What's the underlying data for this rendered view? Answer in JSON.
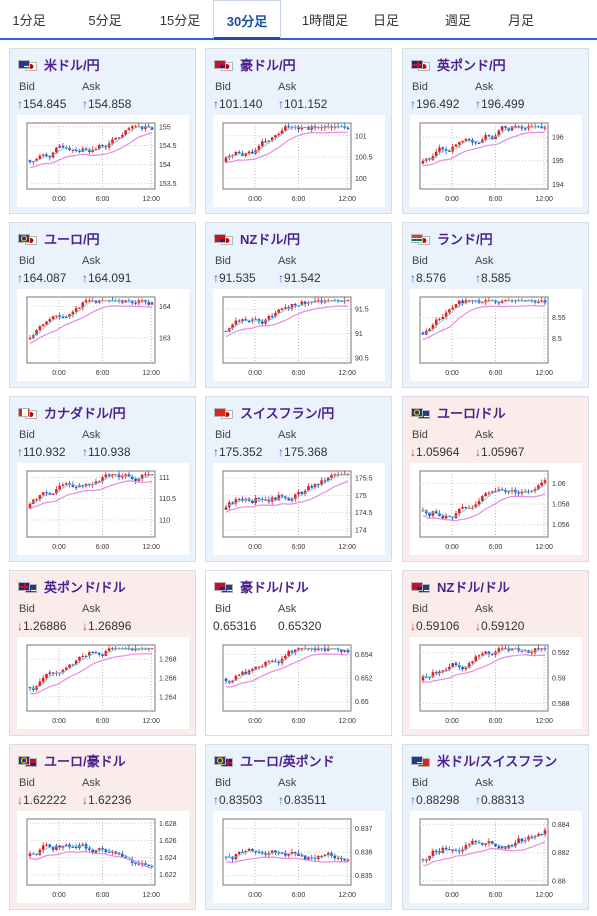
{
  "tabs": [
    {
      "label": "1分足",
      "active": false
    },
    {
      "label": "5分足",
      "active": false
    },
    {
      "label": "15分足",
      "active": false
    },
    {
      "label": "30分足",
      "active": true
    },
    {
      "label": "1時間足",
      "active": false
    },
    {
      "label": "日足",
      "active": false
    },
    {
      "label": "週足",
      "active": false
    },
    {
      "label": "月足",
      "active": false
    }
  ],
  "labels": {
    "bid": "Bid",
    "ask": "Ask"
  },
  "colors": {
    "up_arrow": "#1a6fc8",
    "down_arrow": "#d03030",
    "title": "#4a1f8e",
    "card_up_bg": "#eaf2fb",
    "card_down_bg": "#fbecec",
    "ma_line": "#e68ae6",
    "candle_up": "#e02020",
    "candle_down": "#2050c8"
  },
  "cards": [
    {
      "name": "米ドル/円",
      "flags": [
        "flag-us-icon",
        "flag-jp-icon"
      ],
      "bid": "154.845",
      "ask": "154.858",
      "dir": "up",
      "chart_data": {
        "type": "candlestick",
        "x_ticks": [
          "0:00",
          "6:00",
          "12:00"
        ],
        "y_ticks": [
          "155",
          "154.5",
          "154",
          "153.5"
        ],
        "ylim": [
          153.35,
          155.1
        ]
      }
    },
    {
      "name": "豪ドル/円",
      "flags": [
        "flag-au-icon",
        "flag-jp-icon"
      ],
      "bid": "101.140",
      "ask": "101.152",
      "dir": "up",
      "chart_data": {
        "type": "candlestick",
        "x_ticks": [
          "0:00",
          "6:00",
          "12:00"
        ],
        "y_ticks": [
          "101",
          "100.5",
          "100"
        ],
        "ylim": [
          99.75,
          101.3
        ]
      }
    },
    {
      "name": "英ポンド/円",
      "flags": [
        "flag-gb-icon",
        "flag-jp-icon"
      ],
      "bid": "196.492",
      "ask": "196.499",
      "dir": "up",
      "chart_data": {
        "type": "candlestick",
        "x_ticks": [
          "0:00",
          "6:00",
          "12:00"
        ],
        "y_ticks": [
          "196",
          "195",
          "194"
        ],
        "ylim": [
          193.8,
          196.6
        ]
      }
    },
    {
      "name": "ユーロ/円",
      "flags": [
        "flag-eu-icon",
        "flag-jp-icon"
      ],
      "bid": "164.087",
      "ask": "164.091",
      "dir": "up",
      "chart_data": {
        "type": "candlestick",
        "x_ticks": [
          "0:00",
          "6:00",
          "12:00"
        ],
        "y_ticks": [
          "164",
          "163"
        ],
        "ylim": [
          162.2,
          164.3
        ]
      }
    },
    {
      "name": "NZドル/円",
      "flags": [
        "flag-nz-icon",
        "flag-jp-icon"
      ],
      "bid": "91.535",
      "ask": "91.542",
      "dir": "up",
      "chart_data": {
        "type": "candlestick",
        "x_ticks": [
          "0:00",
          "6:00",
          "12:00"
        ],
        "y_ticks": [
          "91.5",
          "91",
          "90.5"
        ],
        "ylim": [
          90.4,
          91.75
        ]
      }
    },
    {
      "name": "ランド/円",
      "flags": [
        "flag-za-icon",
        "flag-jp-icon"
      ],
      "bid": "8.576",
      "ask": "8.585",
      "dir": "up",
      "chart_data": {
        "type": "candlestick",
        "x_ticks": [
          "0:00",
          "6:00",
          "12:00"
        ],
        "y_ticks": [
          "8.55",
          "8.5"
        ],
        "ylim": [
          8.44,
          8.6
        ]
      }
    },
    {
      "name": "カナダドル/円",
      "flags": [
        "flag-ca-icon",
        "flag-jp-icon"
      ],
      "bid": "110.932",
      "ask": "110.938",
      "dir": "up",
      "chart_data": {
        "type": "candlestick",
        "x_ticks": [
          "0:00",
          "6:00",
          "12:00"
        ],
        "y_ticks": [
          "111",
          "110.5",
          "110"
        ],
        "ylim": [
          109.6,
          111.15
        ]
      }
    },
    {
      "name": "スイスフラン/円",
      "flags": [
        "flag-ch-icon",
        "flag-jp-icon"
      ],
      "bid": "175.352",
      "ask": "175.368",
      "dir": "up",
      "chart_data": {
        "type": "candlestick",
        "x_ticks": [
          "0:00",
          "6:00",
          "12:00"
        ],
        "y_ticks": [
          "175.5",
          "175",
          "174.5",
          "174"
        ],
        "ylim": [
          173.8,
          175.7
        ]
      }
    },
    {
      "name": "ユーロ/ドル",
      "flags": [
        "flag-eu-icon",
        "flag-us-icon"
      ],
      "bid": "1.05964",
      "ask": "1.05967",
      "dir": "down",
      "chart_data": {
        "type": "candlestick",
        "x_ticks": [
          "0:00",
          "6:00",
          "12:00"
        ],
        "y_ticks": [
          "1.06",
          "1.058",
          "1.056"
        ],
        "ylim": [
          1.0548,
          1.0612
        ]
      }
    },
    {
      "name": "英ポンド/ドル",
      "flags": [
        "flag-gb-icon",
        "flag-us-icon"
      ],
      "bid": "1.26886",
      "ask": "1.26896",
      "dir": "down",
      "chart_data": {
        "type": "candlestick",
        "x_ticks": [
          "0:00",
          "6:00",
          "12:00"
        ],
        "y_ticks": [
          "1.268",
          "1.266",
          "1.264"
        ],
        "ylim": [
          1.2625,
          1.2695
        ]
      }
    },
    {
      "name": "豪ドル/ドル",
      "flags": [
        "flag-au-icon",
        "flag-us-icon"
      ],
      "bid": "0.65316",
      "ask": "0.65320",
      "dir": "flat",
      "chart_data": {
        "type": "candlestick",
        "x_ticks": [
          "0:00",
          "6:00",
          "12:00"
        ],
        "y_ticks": [
          "0.654",
          "0.652",
          "0.65"
        ],
        "ylim": [
          0.6492,
          0.6548
        ]
      }
    },
    {
      "name": "NZドル/ドル",
      "flags": [
        "flag-nz-icon",
        "flag-us-icon"
      ],
      "bid": "0.59106",
      "ask": "0.59120",
      "dir": "down",
      "chart_data": {
        "type": "candlestick",
        "x_ticks": [
          "0:00",
          "6:00",
          "12:00"
        ],
        "y_ticks": [
          "0.592",
          "0.59",
          "0.588"
        ],
        "ylim": [
          0.5874,
          0.5926
        ]
      }
    },
    {
      "name": "ユーロ/豪ドル",
      "flags": [
        "flag-eu-icon",
        "flag-au-icon"
      ],
      "bid": "1.62222",
      "ask": "1.62236",
      "dir": "down",
      "chart_data": {
        "type": "candlestick",
        "x_ticks": [
          "0:00",
          "6:00",
          "12:00"
        ],
        "y_ticks": [
          "1.628",
          "1.626",
          "1.624",
          "1.622"
        ],
        "ylim": [
          1.6208,
          1.6285
        ]
      }
    },
    {
      "name": "ユーロ/英ポンド",
      "flags": [
        "flag-eu-icon",
        "flag-gb-icon"
      ],
      "bid": "0.83503",
      "ask": "0.83511",
      "dir": "up",
      "chart_data": {
        "type": "candlestick",
        "x_ticks": [
          "0:00",
          "6:00",
          "12:00"
        ],
        "y_ticks": [
          "0.837",
          "0.836",
          "0.835"
        ],
        "ylim": [
          0.8346,
          0.8374
        ]
      }
    },
    {
      "name": "米ドル/スイスフラン",
      "flags": [
        "flag-us-icon",
        "flag-ch-icon"
      ],
      "bid": "0.88298",
      "ask": "0.88313",
      "dir": "up",
      "chart_data": {
        "type": "candlestick",
        "x_ticks": [
          "0:00",
          "6:00",
          "12:00"
        ],
        "y_ticks": [
          "0.884",
          "0.882",
          "0.88"
        ],
        "ylim": [
          0.8797,
          0.8844
        ]
      }
    }
  ]
}
